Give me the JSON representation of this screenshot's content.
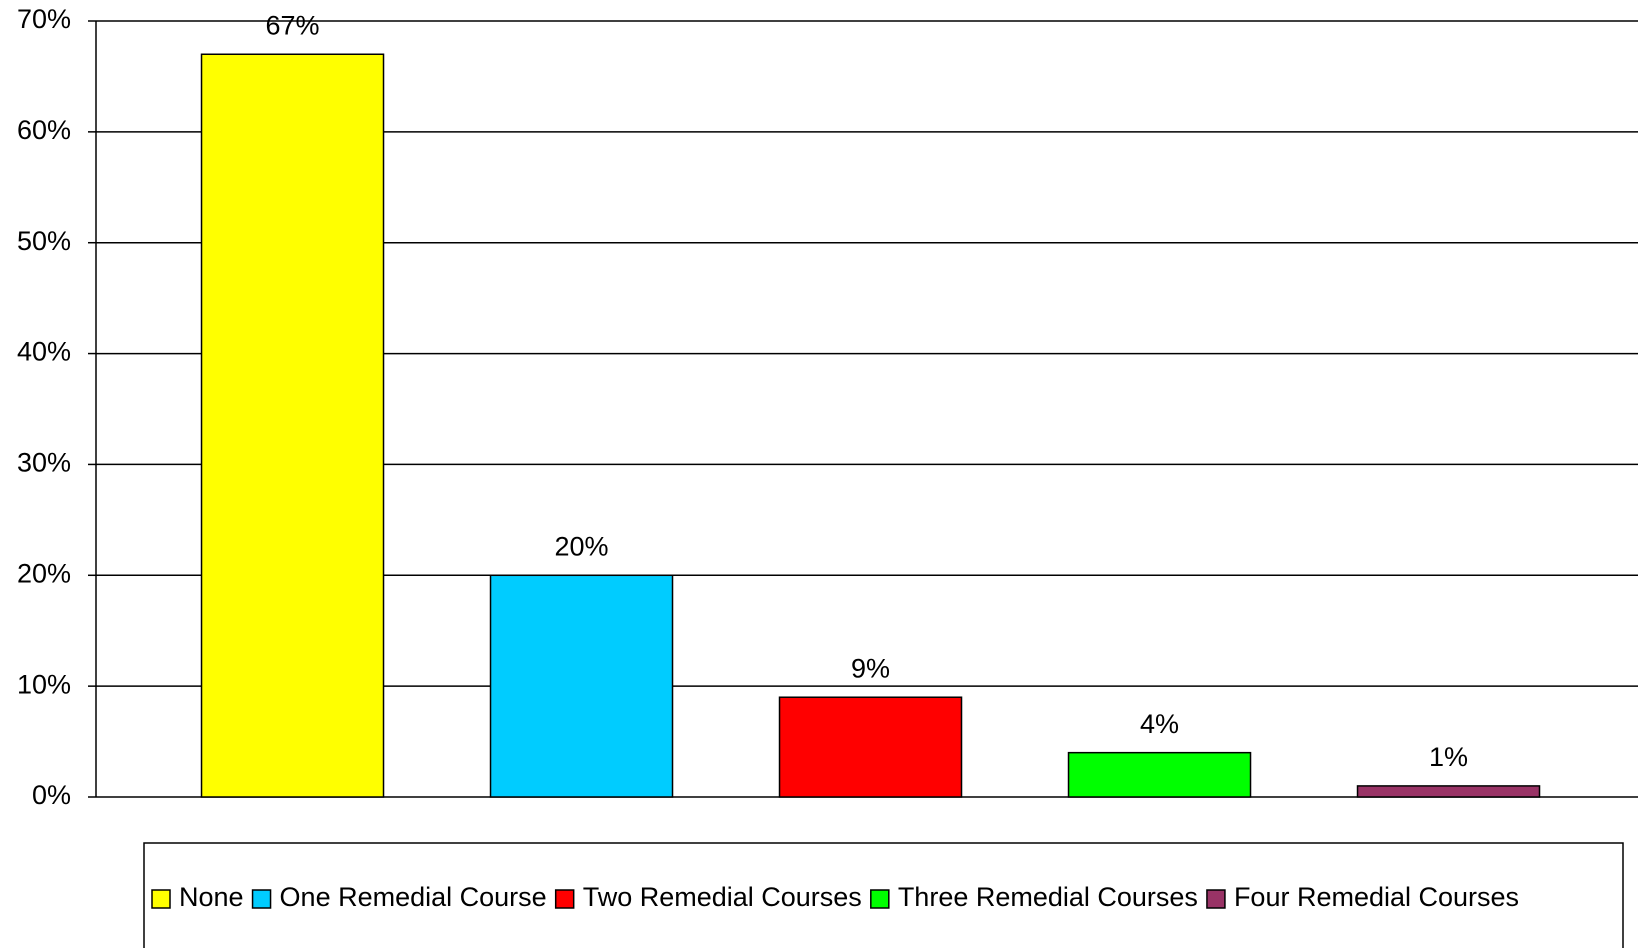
{
  "chart_data": {
    "type": "bar",
    "categories": [
      "None",
      "One Remedial Course",
      "Two Remedial Courses",
      "Three Remedial Courses",
      "Four Remedial Courses"
    ],
    "values": [
      67,
      20,
      9,
      4,
      1
    ],
    "value_labels": [
      "67%",
      "20%",
      "9%",
      "4%",
      "1%"
    ],
    "colors": [
      "#ffff00",
      "#00ccff",
      "#ff0000",
      "#00ff00",
      "#993366"
    ],
    "ylim": [
      0,
      70
    ],
    "yticks": [
      {
        "value": 0,
        "label": "0%"
      },
      {
        "value": 10,
        "label": "10%"
      },
      {
        "value": 20,
        "label": "20%"
      },
      {
        "value": 30,
        "label": "30%"
      },
      {
        "value": 40,
        "label": "40%"
      },
      {
        "value": 50,
        "label": "50%"
      },
      {
        "value": 60,
        "label": "60%"
      },
      {
        "value": 70,
        "label": "70%"
      }
    ],
    "grid": true,
    "legend": "bottom"
  }
}
